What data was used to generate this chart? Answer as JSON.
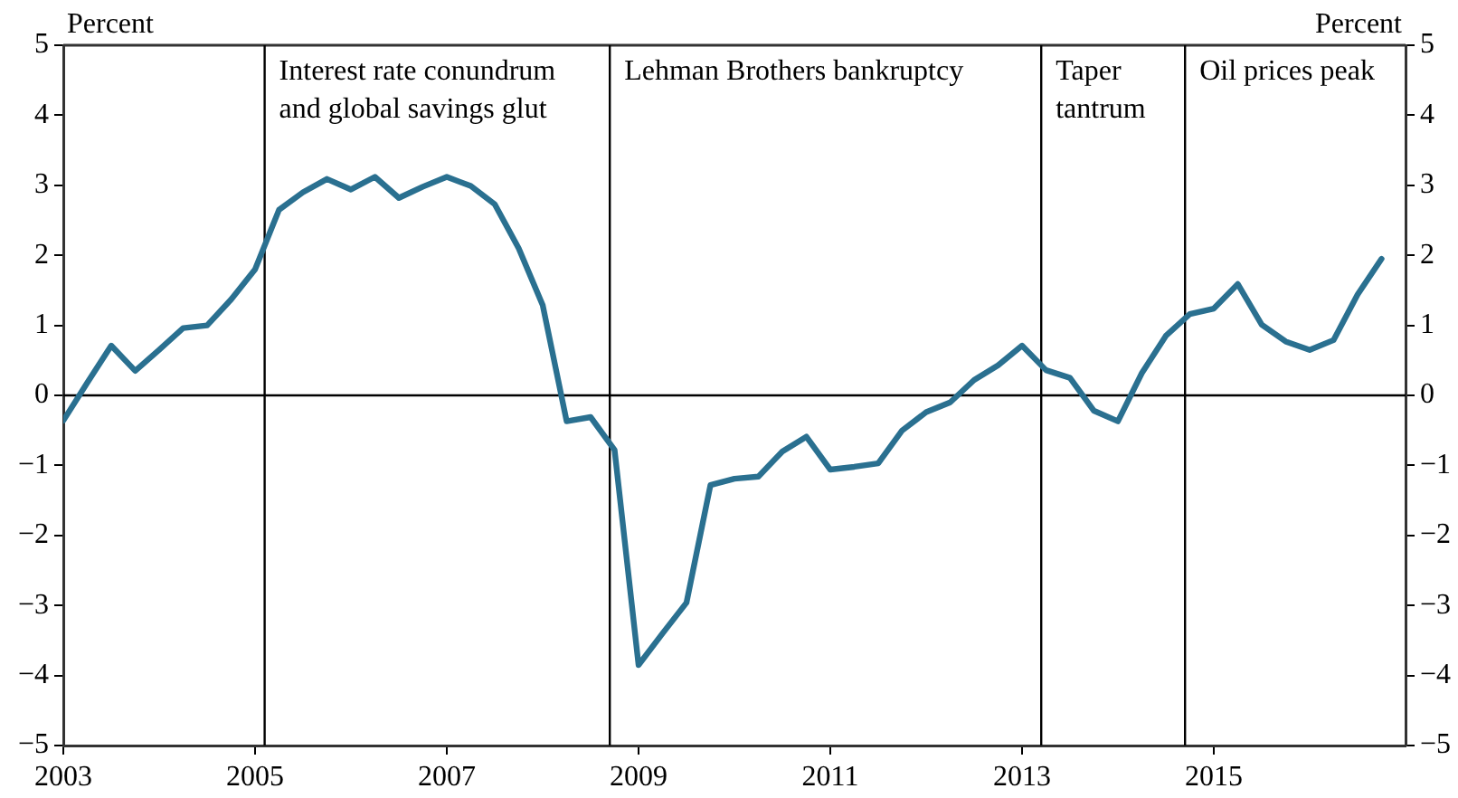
{
  "chart_data": {
    "type": "line",
    "ylabel": "Percent",
    "y2label": "Percent",
    "x": [
      2003,
      2003.25,
      2003.5,
      2003.75,
      2004,
      2004.25,
      2004.5,
      2004.75,
      2005,
      2005.25,
      2005.5,
      2005.75,
      2006,
      2006.25,
      2006.5,
      2006.75,
      2007,
      2007.25,
      2007.5,
      2007.75,
      2008,
      2008.25,
      2008.5,
      2008.75,
      2009,
      2009.25,
      2009.5,
      2009.75,
      2010,
      2010.25,
      2010.5,
      2010.75,
      2011,
      2011.25,
      2011.5,
      2011.75,
      2012,
      2012.25,
      2012.5,
      2012.75,
      2013,
      2013.25,
      2013.5,
      2013.75,
      2014,
      2014.25,
      2014.5,
      2014.75,
      2015,
      2015.25,
      2015.5,
      2015.75,
      2016,
      2016.25,
      2016.5,
      2016.75
    ],
    "series": [
      {
        "color": "#2a7090",
        "values": [
          -0.36,
          0.18,
          0.71,
          0.35,
          0.65,
          0.96,
          1.0,
          1.37,
          1.8,
          2.65,
          2.9,
          3.09,
          2.94,
          3.12,
          2.82,
          2.98,
          3.12,
          2.99,
          2.73,
          2.1,
          1.29,
          -0.37,
          -0.31,
          -0.78,
          -3.85,
          -3.4,
          -2.96,
          -1.28,
          -1.19,
          -1.16,
          -0.8,
          -0.59,
          -1.06,
          -1.02,
          -0.97,
          -0.5,
          -0.24,
          -0.1,
          0.22,
          0.43,
          0.71,
          0.36,
          0.25,
          -0.22,
          -0.37,
          0.32,
          0.85,
          1.16,
          1.24,
          1.59,
          1.01,
          0.77,
          0.65,
          0.79,
          1.44,
          1.95
        ]
      }
    ],
    "xlim": [
      2003,
      2017
    ],
    "xticks": [
      2003,
      2005,
      2007,
      2009,
      2011,
      2013,
      2015
    ],
    "ylim": [
      -5,
      5
    ],
    "yticks": [
      -5,
      -4,
      -3,
      -2,
      -1,
      0,
      1,
      2,
      3,
      4,
      5
    ],
    "y2lim": [
      -5,
      5
    ],
    "y2ticks": [
      -5,
      -4,
      -3,
      -2,
      -1,
      0,
      1,
      2,
      3,
      4,
      5
    ],
    "ref_lines": [
      {
        "axis": "y",
        "value": 0,
        "label": null
      },
      {
        "axis": "x",
        "value": 2005.1,
        "label": "Interest rate conundrum and global savings glut"
      },
      {
        "axis": "x",
        "value": 2008.7,
        "label": "Lehman Brothers bankruptcy"
      },
      {
        "axis": "x",
        "value": 2013.2,
        "label": "Taper tantrum"
      },
      {
        "axis": "x",
        "value": 2014.7,
        "label": "Oil prices peak"
      }
    ],
    "grid": false,
    "legend": false,
    "marker": "none",
    "line_style": "solid"
  }
}
